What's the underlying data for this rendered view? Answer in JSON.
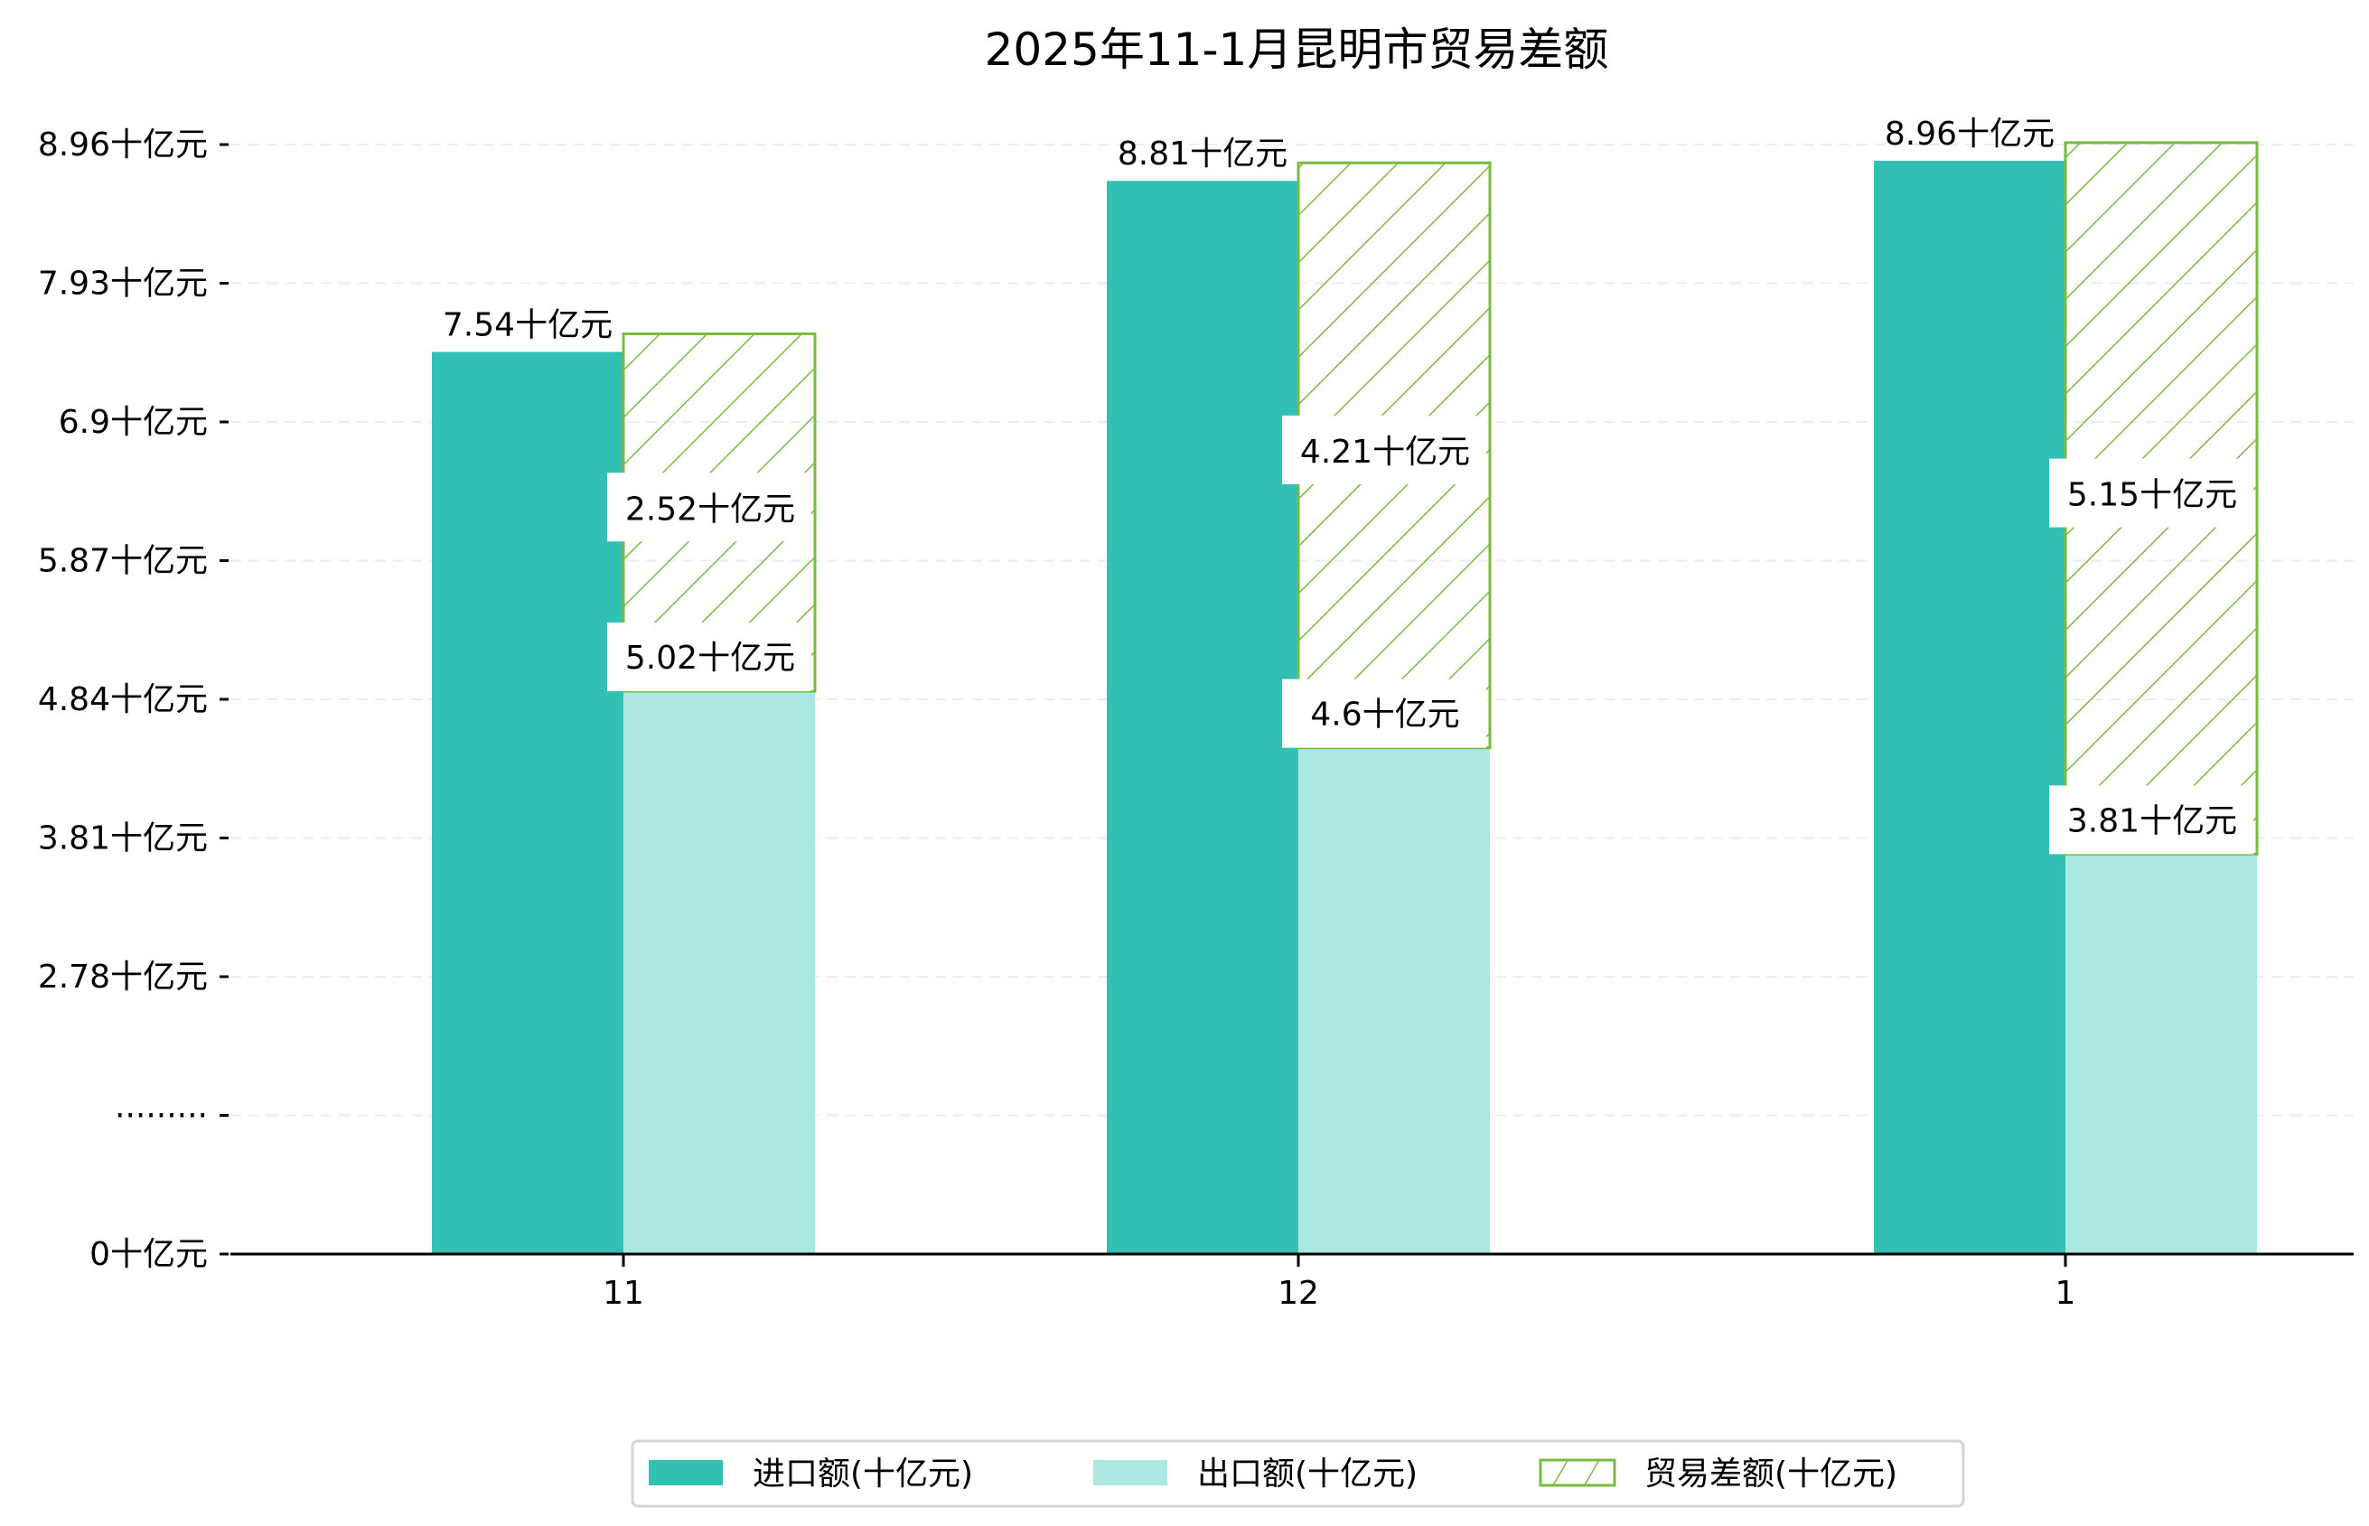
{
  "chart_data": {
    "type": "bar",
    "title": "2025年11-1月昆明市贸易差额",
    "xlabel": "",
    "ylabel": "",
    "categories": [
      "11",
      "12",
      "1"
    ],
    "series": [
      {
        "name": "进口额(十亿元)",
        "values": [
          7.54,
          8.81,
          8.96
        ],
        "color": "#31c0b3",
        "labels": [
          "7.54十亿元",
          "8.81十亿元",
          "8.96十亿元"
        ]
      },
      {
        "name": "出口额(十亿元)",
        "values": [
          5.02,
          4.6,
          3.81
        ],
        "color": "#abe8e2",
        "labels": [
          "5.02十亿元",
          "4.6十亿元",
          "3.81十亿元"
        ]
      },
      {
        "name": "贸易差额(十亿元)",
        "values": [
          2.52,
          4.21,
          5.15
        ],
        "color": "#77bb41",
        "hatch": "/",
        "stacked_on": "出口额(十亿元)",
        "labels": [
          "2.52十亿元",
          "4.21十亿元",
          "5.15十亿元"
        ]
      }
    ],
    "yticks": [
      "0十亿元",
      "·········",
      "2.78十亿元",
      "3.81十亿元",
      "4.84十亿元",
      "5.87十亿元",
      "6.9十亿元",
      "7.93十亿元",
      "8.96十亿元"
    ],
    "ytick_values": [
      null,
      null,
      2.78,
      3.81,
      4.84,
      5.87,
      6.9,
      7.93,
      8.96
    ],
    "y_axis_break": true,
    "grid": "horizontal dashed",
    "legend_position": "bottom-center"
  }
}
